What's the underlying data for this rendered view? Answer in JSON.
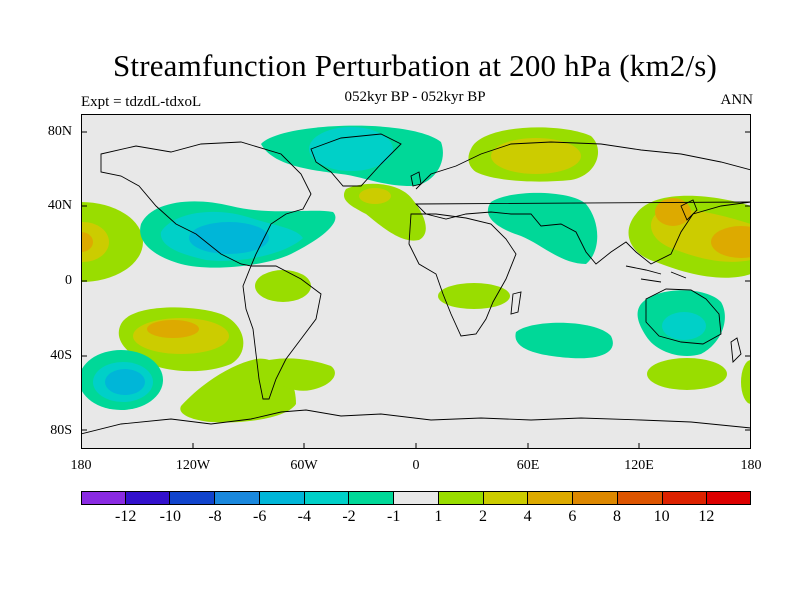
{
  "title": "Streamfunction Perturbation at 200 hPa (km2/s)",
  "subtitle": "052kyr BP - 052kyr BP",
  "experiment": "Expt = tdzdL-tdxoL",
  "season": "ANN",
  "map": {
    "projection": "cylindrical equidistant",
    "background_color": "#e8e8e8",
    "lat_labels": [
      "80N",
      "40N",
      "0",
      "40S",
      "80S"
    ],
    "lon_labels": [
      "180",
      "120W",
      "60W",
      "0",
      "60E",
      "120E",
      "180"
    ]
  },
  "colorbar": {
    "colors": [
      "#8a2be2",
      "#3311cc",
      "#1144cc",
      "#1a88dd",
      "#00b6d8",
      "#00d0c8",
      "#00d898",
      "#e8e8e8",
      "#99dd00",
      "#cccc00",
      "#ddaa00",
      "#dd8800",
      "#dd5500",
      "#dd2200",
      "#dd0000"
    ],
    "labels": [
      "-12",
      "-10",
      "-8",
      "-6",
      "-4",
      "-2",
      "-1",
      "1",
      "2",
      "4",
      "6",
      "8",
      "10",
      "12"
    ]
  }
}
